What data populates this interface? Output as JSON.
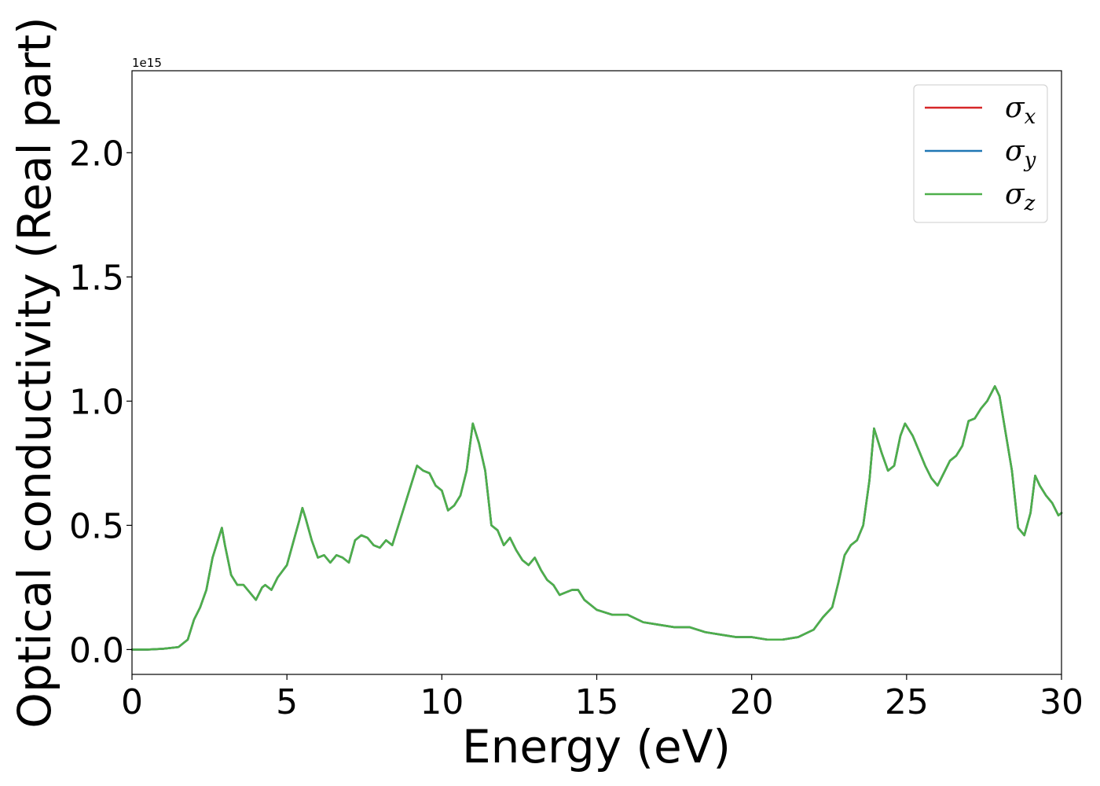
{
  "chart_data": {
    "type": "line",
    "xlabel": "Energy (eV)",
    "ylabel": "Optical conductivity (Real part)",
    "y_offset_label": "1e15",
    "xlim": [
      0,
      30
    ],
    "ylim": [
      -0.1,
      2.33
    ],
    "xticks": [
      0,
      5,
      10,
      15,
      20,
      25,
      30
    ],
    "xtick_labels": [
      "0",
      "5",
      "10",
      "15",
      "20",
      "25",
      "30"
    ],
    "yticks": [
      0.0,
      0.5,
      1.0,
      1.5,
      2.0
    ],
    "ytick_labels": [
      "0.0",
      "0.5",
      "1.0",
      "1.5",
      "2.0"
    ],
    "grid": false,
    "legend_position": "top-right",
    "x": [
      0,
      0.5,
      1,
      1.5,
      1.8,
      2,
      2.2,
      2.4,
      2.6,
      2.8,
      2.9,
      3,
      3.2,
      3.4,
      3.6,
      3.8,
      4,
      4.2,
      4.3,
      4.5,
      4.7,
      5,
      5.2,
      5.4,
      5.5,
      5.6,
      5.8,
      6,
      6.2,
      6.4,
      6.6,
      6.8,
      7,
      7.2,
      7.4,
      7.6,
      7.8,
      8,
      8.2,
      8.4,
      8.6,
      8.8,
      9,
      9.2,
      9.4,
      9.6,
      9.8,
      10,
      10.2,
      10.4,
      10.6,
      10.8,
      11,
      11.2,
      11.4,
      11.6,
      11.8,
      12,
      12.2,
      12.4,
      12.6,
      12.8,
      13,
      13.2,
      13.4,
      13.6,
      13.8,
      14,
      14.2,
      14.4,
      14.6,
      14.8,
      15,
      15.5,
      16,
      16.5,
      17,
      17.5,
      18,
      18.5,
      19,
      19.5,
      20,
      20.5,
      21,
      21.5,
      22,
      22.3,
      22.6,
      22.8,
      23,
      23.2,
      23.4,
      23.6,
      23.8,
      23.95,
      24.2,
      24.4,
      24.6,
      24.8,
      24.95,
      25.2,
      25.4,
      25.6,
      25.8,
      26,
      26.2,
      26.4,
      26.6,
      26.8,
      27,
      27.2,
      27.4,
      27.6,
      27.85,
      28,
      28.2,
      28.4,
      28.6,
      28.8,
      29,
      29.15,
      29.3,
      29.5,
      29.7,
      29.9,
      30
    ],
    "series": [
      {
        "name": "σ_x",
        "color": "#d62728",
        "values": [
          0,
          0,
          0.003,
          0.01,
          0.04,
          0.12,
          0.17,
          0.24,
          0.37,
          0.45,
          0.49,
          0.42,
          0.3,
          0.26,
          0.26,
          0.23,
          0.2,
          0.25,
          0.26,
          0.24,
          0.29,
          0.34,
          0.43,
          0.52,
          0.57,
          0.53,
          0.44,
          0.37,
          0.38,
          0.35,
          0.38,
          0.37,
          0.35,
          0.44,
          0.46,
          0.45,
          0.42,
          0.41,
          0.44,
          0.42,
          0.5,
          0.58,
          0.66,
          0.74,
          0.72,
          0.71,
          0.66,
          0.64,
          0.56,
          0.58,
          0.62,
          0.72,
          0.91,
          0.83,
          0.72,
          0.5,
          0.48,
          0.42,
          0.45,
          0.4,
          0.36,
          0.34,
          0.37,
          0.32,
          0.28,
          0.26,
          0.22,
          0.23,
          0.24,
          0.24,
          0.2,
          0.18,
          0.16,
          0.14,
          0.14,
          0.11,
          0.1,
          0.09,
          0.09,
          0.07,
          0.06,
          0.05,
          0.05,
          0.04,
          0.04,
          0.05,
          0.08,
          0.13,
          0.17,
          0.27,
          0.38,
          0.42,
          0.44,
          0.5,
          0.68,
          0.89,
          0.79,
          0.72,
          0.74,
          0.86,
          0.91,
          0.86,
          0.8,
          0.74,
          0.69,
          0.66,
          0.71,
          0.76,
          0.78,
          0.82,
          0.92,
          0.93,
          0.97,
          1.0,
          1.06,
          1.02,
          0.87,
          0.72,
          0.49,
          0.46,
          0.55,
          0.7,
          0.66,
          0.62,
          0.59,
          0.54,
          0.55
        ]
      },
      {
        "name": "σ_y",
        "color": "#1f77b4",
        "values": [
          0,
          0,
          0.003,
          0.01,
          0.04,
          0.12,
          0.17,
          0.24,
          0.37,
          0.45,
          0.49,
          0.42,
          0.3,
          0.26,
          0.26,
          0.23,
          0.2,
          0.25,
          0.26,
          0.24,
          0.29,
          0.34,
          0.43,
          0.52,
          0.57,
          0.53,
          0.44,
          0.37,
          0.38,
          0.35,
          0.38,
          0.37,
          0.35,
          0.44,
          0.46,
          0.45,
          0.42,
          0.41,
          0.44,
          0.42,
          0.5,
          0.58,
          0.66,
          0.74,
          0.72,
          0.71,
          0.66,
          0.64,
          0.56,
          0.58,
          0.62,
          0.72,
          0.91,
          0.83,
          0.72,
          0.5,
          0.48,
          0.42,
          0.45,
          0.4,
          0.36,
          0.34,
          0.37,
          0.32,
          0.28,
          0.26,
          0.22,
          0.23,
          0.24,
          0.24,
          0.2,
          0.18,
          0.16,
          0.14,
          0.14,
          0.11,
          0.1,
          0.09,
          0.09,
          0.07,
          0.06,
          0.05,
          0.05,
          0.04,
          0.04,
          0.05,
          0.08,
          0.13,
          0.17,
          0.27,
          0.38,
          0.42,
          0.44,
          0.5,
          0.68,
          0.89,
          0.79,
          0.72,
          0.74,
          0.86,
          0.91,
          0.86,
          0.8,
          0.74,
          0.69,
          0.66,
          0.71,
          0.76,
          0.78,
          0.82,
          0.92,
          0.93,
          0.97,
          1.0,
          1.06,
          1.02,
          0.87,
          0.72,
          0.49,
          0.46,
          0.55,
          0.7,
          0.66,
          0.62,
          0.59,
          0.54,
          0.55
        ]
      },
      {
        "name": "σ_z",
        "color": "#4daf4a",
        "values": [
          0,
          0,
          0.003,
          0.01,
          0.04,
          0.12,
          0.17,
          0.24,
          0.37,
          0.45,
          0.49,
          0.42,
          0.3,
          0.26,
          0.26,
          0.23,
          0.2,
          0.25,
          0.26,
          0.24,
          0.29,
          0.34,
          0.43,
          0.52,
          0.57,
          0.53,
          0.44,
          0.37,
          0.38,
          0.35,
          0.38,
          0.37,
          0.35,
          0.44,
          0.46,
          0.45,
          0.42,
          0.41,
          0.44,
          0.42,
          0.5,
          0.58,
          0.66,
          0.74,
          0.72,
          0.71,
          0.66,
          0.64,
          0.56,
          0.58,
          0.62,
          0.72,
          0.91,
          0.83,
          0.72,
          0.5,
          0.48,
          0.42,
          0.45,
          0.4,
          0.36,
          0.34,
          0.37,
          0.32,
          0.28,
          0.26,
          0.22,
          0.23,
          0.24,
          0.24,
          0.2,
          0.18,
          0.16,
          0.14,
          0.14,
          0.11,
          0.1,
          0.09,
          0.09,
          0.07,
          0.06,
          0.05,
          0.05,
          0.04,
          0.04,
          0.05,
          0.08,
          0.13,
          0.17,
          0.27,
          0.38,
          0.42,
          0.44,
          0.5,
          0.68,
          0.89,
          0.79,
          0.72,
          0.74,
          0.86,
          0.91,
          0.86,
          0.8,
          0.74,
          0.69,
          0.66,
          0.71,
          0.76,
          0.78,
          0.82,
          0.92,
          0.93,
          0.97,
          1.0,
          1.06,
          1.02,
          0.87,
          0.72,
          0.49,
          0.46,
          0.55,
          0.7,
          0.66,
          0.62,
          0.59,
          0.54,
          0.55
        ]
      }
    ],
    "legend": [
      {
        "symbol": "σ",
        "subscript": "x"
      },
      {
        "symbol": "σ",
        "subscript": "y"
      },
      {
        "symbol": "σ",
        "subscript": "z"
      }
    ]
  }
}
